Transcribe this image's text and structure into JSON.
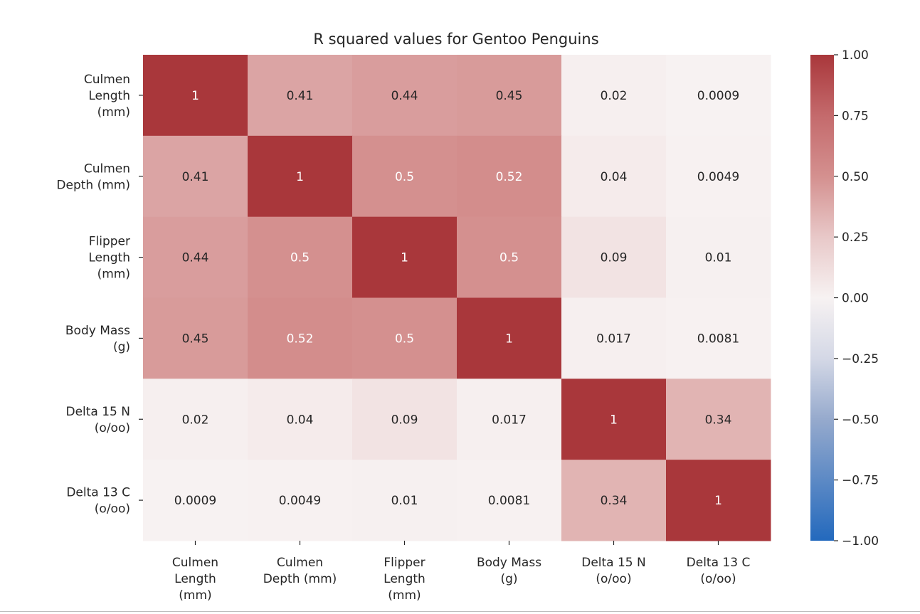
{
  "chart_data": {
    "type": "heatmap",
    "title": "R squared values for Gentoo Penguins",
    "row_labels": [
      "Culmen\nLength\n(mm)",
      "Culmen\nDepth (mm)",
      "Flipper\nLength\n(mm)",
      "Body Mass\n(g)",
      "Delta 15 N\n(o/oo)",
      "Delta 13 C\n(o/oo)"
    ],
    "col_labels": [
      "Culmen\nLength\n(mm)",
      "Culmen\nDepth (mm)",
      "Flipper\nLength\n(mm)",
      "Body Mass\n(g)",
      "Delta 15 N\n(o/oo)",
      "Delta 13 C\n(o/oo)"
    ],
    "values": [
      [
        1,
        0.41,
        0.44,
        0.45,
        0.02,
        0.0009
      ],
      [
        0.41,
        1,
        0.5,
        0.52,
        0.04,
        0.0049
      ],
      [
        0.44,
        0.5,
        1,
        0.5,
        0.09,
        0.01
      ],
      [
        0.45,
        0.52,
        0.5,
        1,
        0.017,
        0.0081
      ],
      [
        0.02,
        0.04,
        0.09,
        0.017,
        1,
        0.34
      ],
      [
        0.0009,
        0.0049,
        0.01,
        0.0081,
        0.34,
        1
      ]
    ],
    "annotations": [
      [
        "1",
        "0.41",
        "0.44",
        "0.45",
        "0.02",
        "0.0009"
      ],
      [
        "0.41",
        "1",
        "0.5",
        "0.52",
        "0.04",
        "0.0049"
      ],
      [
        "0.44",
        "0.5",
        "1",
        "0.5",
        "0.09",
        "0.01"
      ],
      [
        "0.45",
        "0.52",
        "0.5",
        "1",
        "0.017",
        "0.0081"
      ],
      [
        "0.02",
        "0.04",
        "0.09",
        "0.017",
        "1",
        "0.34"
      ],
      [
        "0.0009",
        "0.0049",
        "0.01",
        "0.0081",
        "0.34",
        "1"
      ]
    ],
    "colorbar": {
      "range": [
        -1,
        1
      ],
      "ticks": [
        "1.00",
        "0.75",
        "0.50",
        "0.25",
        "0.00",
        "−0.25",
        "−0.50",
        "−0.75",
        "−1.00"
      ],
      "tick_values": [
        1,
        0.75,
        0.5,
        0.25,
        0,
        -0.25,
        -0.5,
        -0.75,
        -1
      ],
      "colormap": "diverging blue-white-red",
      "colors": {
        "low": "#2369bd",
        "mid": "#f7f2f2",
        "high": "#a9373b"
      }
    }
  }
}
